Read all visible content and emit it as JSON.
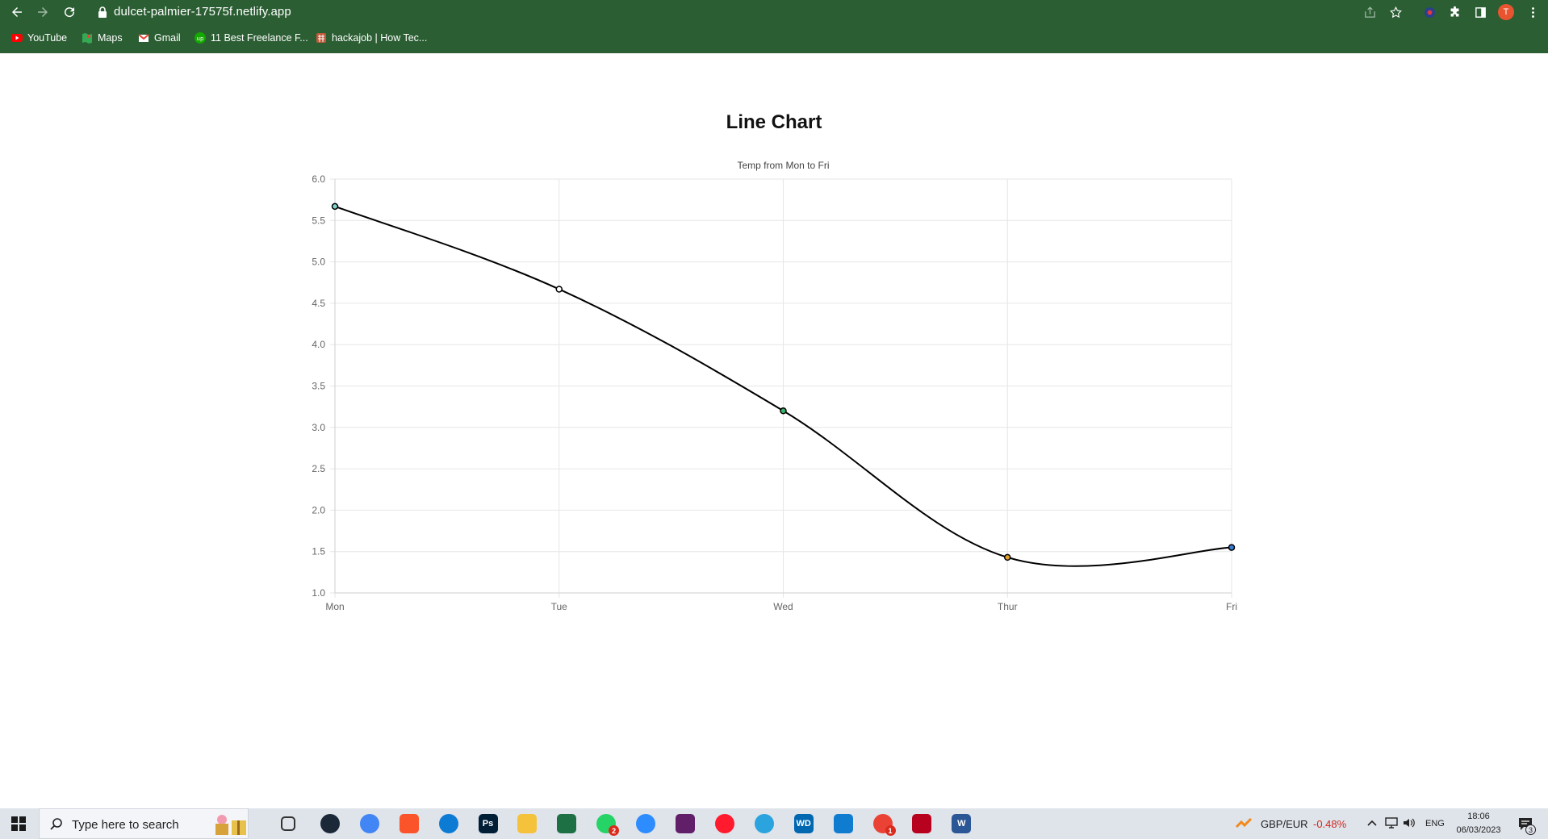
{
  "browser": {
    "url": "dulcet-palmier-17575f.netlify.app",
    "avatar_letter": "T",
    "bookmarks": [
      {
        "label": "YouTube",
        "icon": "youtube-icon"
      },
      {
        "label": "Maps",
        "icon": "maps-icon"
      },
      {
        "label": "Gmail",
        "icon": "gmail-icon"
      },
      {
        "label": "11 Best Freelance F...",
        "icon": "upwork-icon"
      },
      {
        "label": "hackajob | How Tec...",
        "icon": "hackajob-icon"
      }
    ]
  },
  "page": {
    "heading": "Line Chart"
  },
  "chart_data": {
    "type": "line",
    "title": "Temp from Mon to Fri",
    "categories": [
      "Mon",
      "Tue",
      "Wed",
      "Thur",
      "Fri"
    ],
    "series": [
      {
        "values": [
          5.67,
          4.67,
          3.2,
          1.43,
          1.55
        ],
        "color": "#000000",
        "point_colors": [
          "#7fd3c8",
          "#ffffff",
          "#38b56a",
          "#e0a030",
          "#3a7bd5"
        ]
      }
    ],
    "xlabel": "",
    "ylabel": "",
    "ylim": [
      1.0,
      6.0
    ],
    "yticks": [
      "1.0",
      "1.5",
      "2.0",
      "2.5",
      "3.0",
      "3.5",
      "4.0",
      "4.5",
      "5.0",
      "5.5",
      "6.0"
    ],
    "grid": true,
    "smooth": true,
    "legend": "none"
  },
  "taskbar": {
    "search_placeholder": "Type here to search",
    "apps": [
      {
        "name": "task-view-icon"
      },
      {
        "name": "steam-icon"
      },
      {
        "name": "chrome-icon"
      },
      {
        "name": "brave-icon"
      },
      {
        "name": "edge-icon"
      },
      {
        "name": "photoshop-icon",
        "label": "Ps"
      },
      {
        "name": "file-explorer-icon"
      },
      {
        "name": "excel-icon"
      },
      {
        "name": "whatsapp-icon",
        "badge": "2"
      },
      {
        "name": "zoom-icon"
      },
      {
        "name": "slack-icon"
      },
      {
        "name": "opera-icon"
      },
      {
        "name": "telegram-icon"
      },
      {
        "name": "wd-icon",
        "label": "WD"
      },
      {
        "name": "vscode-icon"
      },
      {
        "name": "chrome-profile-icon",
        "badge": "1"
      },
      {
        "name": "pdf-icon"
      },
      {
        "name": "word-icon",
        "label": "W"
      }
    ],
    "ticker_pair": "GBP/EUR",
    "ticker_change": "-0.48%",
    "language": "ENG",
    "time": "18:06",
    "date": "06/03/2023",
    "notification_count": "3"
  }
}
